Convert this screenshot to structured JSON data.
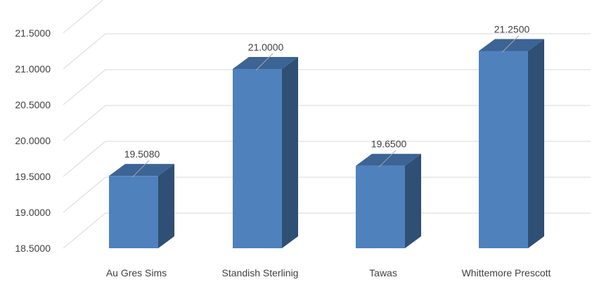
{
  "chart_data": {
    "type": "bar",
    "style": "3d-column",
    "title": "",
    "xlabel": "",
    "ylabel": "",
    "categories": [
      "Au Gres Sims",
      "Standish Sterlinig",
      "Tawas",
      "Whittemore Prescott"
    ],
    "series": [
      {
        "values": [
          19.508,
          21.0,
          19.65,
          21.25
        ]
      }
    ],
    "data_labels": [
      "19.5080",
      "21.0000",
      "19.6500",
      "21.2500"
    ],
    "ylim": [
      18.5,
      21.5
    ],
    "yticks": [
      18.5,
      19.0,
      19.5,
      20.0,
      20.5,
      21.0,
      21.5
    ],
    "ytick_labels": [
      "18.5000",
      "19.0000",
      "19.5000",
      "20.0000",
      "20.5000",
      "21.0000",
      "21.5000"
    ],
    "grid": true,
    "legend": "none",
    "colors": {
      "bar_front": "#4f81bd",
      "bar_side": "#2f4f75",
      "bar_top": "#3c6494",
      "grid": "#d9d9d9",
      "text": "#404040"
    }
  }
}
